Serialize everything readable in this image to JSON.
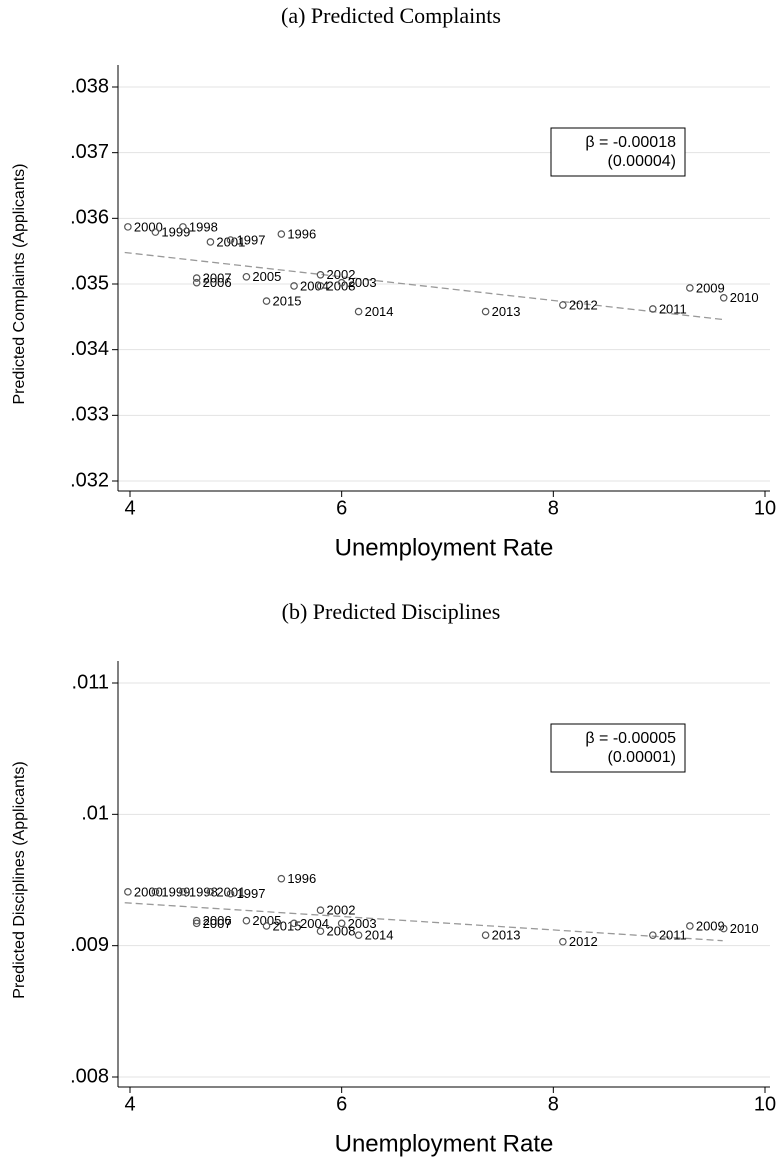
{
  "chart_data": [
    {
      "type": "scatter",
      "title": "(a) Predicted Complaints",
      "x_label": "Unemployment Rate",
      "y_label": "Predicted Complaints (Applicants)",
      "annotation": [
        "β = -0.00018",
        "(0.00004)"
      ],
      "xlim": [
        4,
        10
      ],
      "xticks": [
        4,
        6,
        8,
        10
      ],
      "ylim": [
        0.032,
        0.038
      ],
      "yticks": [
        {
          "value": 0.032,
          "label": ".032"
        },
        {
          "value": 0.033,
          "label": ".033"
        },
        {
          "value": 0.034,
          "label": ".034"
        },
        {
          "value": 0.035,
          "label": ".035"
        },
        {
          "value": 0.036,
          "label": ".036"
        },
        {
          "value": 0.037,
          "label": ".037"
        },
        {
          "value": 0.038,
          "label": ".038"
        }
      ],
      "grid": true,
      "color": "#555555",
      "fit_color": "#999999",
      "labels": [
        "2000",
        "1999",
        "1998",
        "2001",
        "1997",
        "1996",
        "2007",
        "2006",
        "2005",
        "2015",
        "2002",
        "2004",
        "2008",
        "2003",
        "2014",
        "2013",
        "2012",
        "2011",
        "2009",
        "2010"
      ],
      "x": [
        3.98,
        4.24,
        4.5,
        4.76,
        4.95,
        5.43,
        4.63,
        4.63,
        5.1,
        5.29,
        5.8,
        5.55,
        5.8,
        6.0,
        6.16,
        7.36,
        8.09,
        8.94,
        9.29,
        9.61
      ],
      "y": [
        0.03587,
        0.03579,
        0.03587,
        0.03564,
        0.03567,
        0.03576,
        0.03509,
        0.03502,
        0.03511,
        0.03474,
        0.03514,
        0.03497,
        0.03497,
        0.03502,
        0.03458,
        0.03458,
        0.03468,
        0.03462,
        0.03494,
        0.03479
      ],
      "fit": {
        "x": [
          3.95,
          9.6
        ],
        "y": [
          0.03548,
          0.03446
        ]
      }
    },
    {
      "type": "scatter",
      "title": "(b) Predicted Disciplines",
      "x_label": "Unemployment Rate",
      "y_label": "Predicted Disciplines (Applicants)",
      "annotation": [
        "β = -0.00005",
        "(0.00001)"
      ],
      "xlim": [
        4,
        10
      ],
      "xticks": [
        4,
        6,
        8,
        10
      ],
      "ylim": [
        0.008,
        0.011
      ],
      "yticks": [
        {
          "value": 0.008,
          "label": ".008"
        },
        {
          "value": 0.009,
          "label": ".009"
        },
        {
          "value": 0.01,
          "label": ".01"
        },
        {
          "value": 0.011,
          "label": ".011"
        }
      ],
      "grid": true,
      "color": "#555555",
      "fit_color": "#999999",
      "labels": [
        "2000",
        "1999",
        "1998",
        "2001",
        "1997",
        "1996",
        "2006",
        "2007",
        "2005",
        "2015",
        "2004",
        "2002",
        "2008",
        "2003",
        "2014",
        "2013",
        "2012",
        "2011",
        "2009",
        "2010"
      ],
      "x": [
        3.98,
        4.24,
        4.5,
        4.76,
        4.95,
        5.43,
        4.63,
        4.63,
        5.1,
        5.29,
        5.55,
        5.8,
        5.8,
        6.0,
        6.16,
        7.36,
        8.09,
        8.94,
        9.29,
        9.61
      ],
      "y": [
        0.00941,
        0.00941,
        0.00941,
        0.00941,
        0.009396,
        0.00951,
        0.00919,
        0.00917,
        0.00919,
        0.00915,
        0.00917,
        0.00927,
        0.00911,
        0.00917,
        0.00908,
        0.00908,
        0.00903,
        0.00908,
        0.00915,
        0.00913
      ],
      "fit": {
        "x": [
          3.95,
          9.6
        ],
        "y": [
          0.009327,
          0.009038
        ]
      }
    }
  ]
}
